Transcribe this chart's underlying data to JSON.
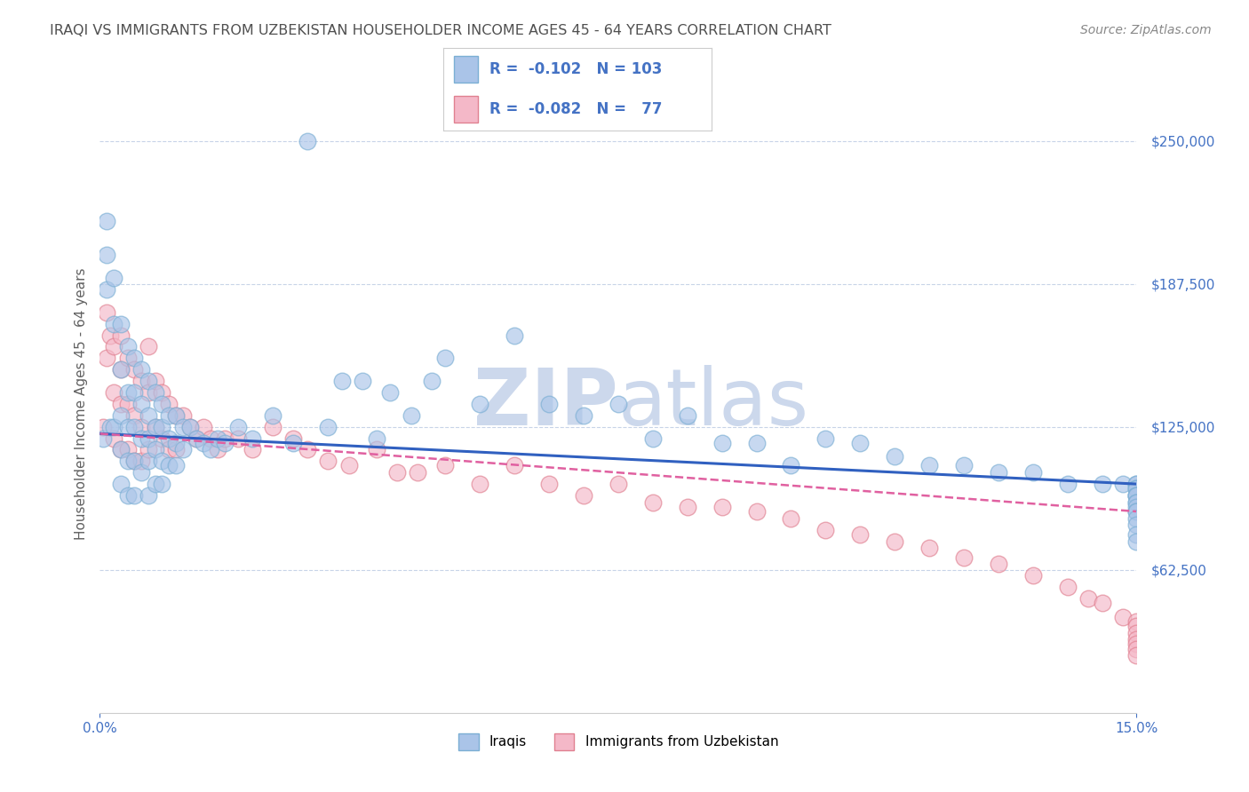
{
  "title": "IRAQI VS IMMIGRANTS FROM UZBEKISTAN HOUSEHOLDER INCOME AGES 45 - 64 YEARS CORRELATION CHART",
  "source": "Source: ZipAtlas.com",
  "ylabel": "Householder Income Ages 45 - 64 years",
  "xlim": [
    0.0,
    0.15
  ],
  "ylim": [
    0,
    270000
  ],
  "yticks": [
    0,
    62500,
    125000,
    187500,
    250000
  ],
  "ytick_labels": [
    "",
    "$62,500",
    "$125,000",
    "$187,500",
    "$250,000"
  ],
  "series1_color": "#aac4e8",
  "series1_edge": "#7bafd4",
  "series2_color": "#f4b8c8",
  "series2_edge": "#e08090",
  "trend1_color": "#3060c0",
  "trend2_color": "#e060a0",
  "background_color": "#ffffff",
  "watermark_color": "#ccd8ec",
  "grid_color": "#c8d4e8",
  "title_color": "#505050",
  "axis_label_color": "#606060",
  "tick_color": "#4472c4",
  "R1": -0.102,
  "N1": 103,
  "R2": -0.082,
  "N2": 77,
  "iraqis_x": [
    0.0005,
    0.001,
    0.001,
    0.001,
    0.0015,
    0.002,
    0.002,
    0.002,
    0.003,
    0.003,
    0.003,
    0.003,
    0.003,
    0.004,
    0.004,
    0.004,
    0.004,
    0.004,
    0.005,
    0.005,
    0.005,
    0.005,
    0.005,
    0.006,
    0.006,
    0.006,
    0.006,
    0.007,
    0.007,
    0.007,
    0.007,
    0.007,
    0.008,
    0.008,
    0.008,
    0.008,
    0.009,
    0.009,
    0.009,
    0.009,
    0.01,
    0.01,
    0.01,
    0.011,
    0.011,
    0.011,
    0.012,
    0.012,
    0.013,
    0.014,
    0.015,
    0.016,
    0.017,
    0.018,
    0.02,
    0.022,
    0.025,
    0.028,
    0.03,
    0.033,
    0.035,
    0.038,
    0.04,
    0.042,
    0.045,
    0.048,
    0.05,
    0.055,
    0.06,
    0.065,
    0.07,
    0.075,
    0.08,
    0.085,
    0.09,
    0.095,
    0.1,
    0.105,
    0.11,
    0.115,
    0.12,
    0.125,
    0.13,
    0.135,
    0.14,
    0.145,
    0.148,
    0.15,
    0.15,
    0.15,
    0.15,
    0.15,
    0.15,
    0.15,
    0.15,
    0.15,
    0.15,
    0.15,
    0.15,
    0.15,
    0.15,
    0.15,
    0.15
  ],
  "iraqis_y": [
    120000,
    215000,
    200000,
    185000,
    125000,
    190000,
    170000,
    125000,
    170000,
    150000,
    130000,
    115000,
    100000,
    160000,
    140000,
    125000,
    110000,
    95000,
    155000,
    140000,
    125000,
    110000,
    95000,
    150000,
    135000,
    120000,
    105000,
    145000,
    130000,
    120000,
    110000,
    95000,
    140000,
    125000,
    115000,
    100000,
    135000,
    125000,
    110000,
    100000,
    130000,
    120000,
    108000,
    130000,
    118000,
    108000,
    125000,
    115000,
    125000,
    120000,
    118000,
    115000,
    120000,
    118000,
    125000,
    120000,
    130000,
    118000,
    250000,
    125000,
    145000,
    145000,
    120000,
    140000,
    130000,
    145000,
    155000,
    135000,
    165000,
    135000,
    130000,
    135000,
    120000,
    130000,
    118000,
    118000,
    108000,
    120000,
    118000,
    112000,
    108000,
    108000,
    105000,
    105000,
    100000,
    100000,
    100000,
    100000,
    100000,
    98000,
    98000,
    95000,
    95000,
    95000,
    92000,
    92000,
    90000,
    88000,
    88000,
    85000,
    82000,
    78000,
    75000
  ],
  "uzbek_x": [
    0.0005,
    0.001,
    0.001,
    0.0015,
    0.002,
    0.002,
    0.002,
    0.003,
    0.003,
    0.003,
    0.003,
    0.004,
    0.004,
    0.004,
    0.005,
    0.005,
    0.005,
    0.006,
    0.006,
    0.006,
    0.007,
    0.007,
    0.007,
    0.008,
    0.008,
    0.009,
    0.009,
    0.01,
    0.01,
    0.011,
    0.011,
    0.012,
    0.013,
    0.014,
    0.015,
    0.016,
    0.017,
    0.018,
    0.02,
    0.022,
    0.025,
    0.028,
    0.03,
    0.033,
    0.036,
    0.04,
    0.043,
    0.046,
    0.05,
    0.055,
    0.06,
    0.065,
    0.07,
    0.075,
    0.08,
    0.085,
    0.09,
    0.095,
    0.1,
    0.105,
    0.11,
    0.115,
    0.12,
    0.125,
    0.13,
    0.135,
    0.14,
    0.143,
    0.145,
    0.148,
    0.15,
    0.15,
    0.15,
    0.15,
    0.15,
    0.15,
    0.15
  ],
  "uzbek_y": [
    125000,
    175000,
    155000,
    165000,
    160000,
    140000,
    120000,
    165000,
    150000,
    135000,
    115000,
    155000,
    135000,
    115000,
    150000,
    130000,
    110000,
    145000,
    125000,
    110000,
    160000,
    140000,
    115000,
    145000,
    125000,
    140000,
    120000,
    135000,
    115000,
    130000,
    115000,
    130000,
    125000,
    120000,
    125000,
    120000,
    115000,
    120000,
    120000,
    115000,
    125000,
    120000,
    115000,
    110000,
    108000,
    115000,
    105000,
    105000,
    108000,
    100000,
    108000,
    100000,
    95000,
    100000,
    92000,
    90000,
    90000,
    88000,
    85000,
    80000,
    78000,
    75000,
    72000,
    68000,
    65000,
    60000,
    55000,
    50000,
    48000,
    42000,
    40000,
    38000,
    35000,
    32000,
    30000,
    28000,
    25000
  ]
}
